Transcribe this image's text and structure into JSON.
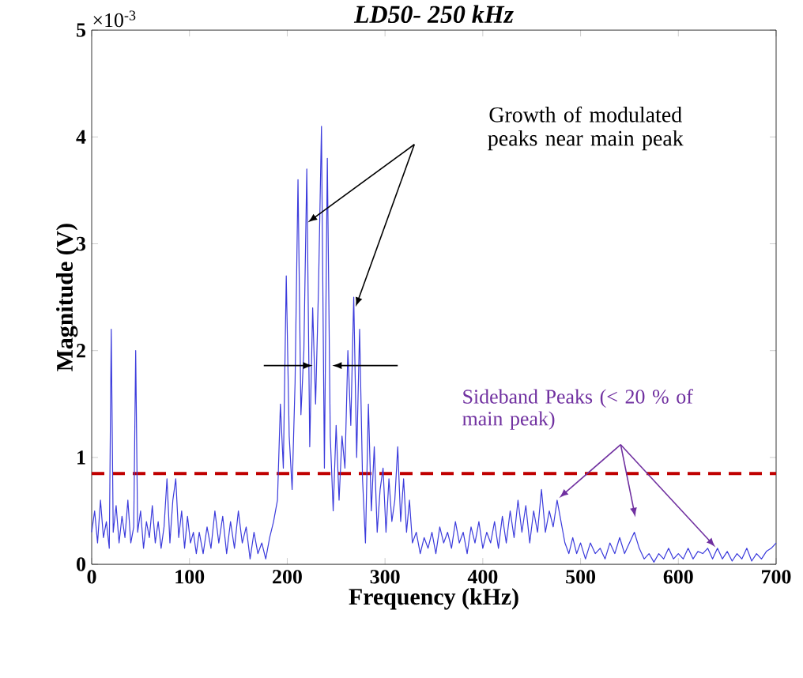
{
  "chart_data": {
    "type": "line",
    "title": "LD50- 250 kHz",
    "xlabel": "Frequency (kHz)",
    "ylabel": "Magnitude (V)",
    "annotations": [
      "×10$^{-3}$",
      "Growth of modulated peaks near main peak",
      "Sideband Peaks (< 20 % of main peak)"
    ],
    "xlim": [
      0,
      700
    ],
    "ylim": [
      0,
      5
    ],
    "xticks": [
      0,
      100,
      200,
      300,
      400,
      500,
      600,
      700
    ],
    "yticks": [
      0,
      1,
      2,
      3,
      4,
      5
    ],
    "grid": false,
    "ref_lines": [
      {
        "axis": "y",
        "value": 0.85,
        "color": "#c00000",
        "line_style": "dashed"
      }
    ],
    "series": [
      {
        "color": "#3b3bdc",
        "x": [
          0,
          3,
          6,
          9,
          12,
          15,
          18,
          20,
          22,
          25,
          28,
          31,
          34,
          37,
          40,
          43,
          45,
          47,
          50,
          53,
          56,
          59,
          62,
          65,
          68,
          71,
          74,
          77,
          80,
          83,
          86,
          89,
          92,
          95,
          98,
          101,
          104,
          107,
          110,
          114,
          118,
          122,
          126,
          130,
          134,
          138,
          142,
          146,
          150,
          154,
          158,
          162,
          166,
          170,
          174,
          178,
          182,
          186,
          190,
          193,
          196,
          199,
          202,
          205,
          208,
          211,
          214,
          217,
          220,
          223,
          226,
          229,
          232,
          235,
          238,
          241,
          244,
          247,
          250,
          253,
          256,
          259,
          262,
          265,
          268,
          271,
          274,
          277,
          280,
          283,
          286,
          289,
          292,
          295,
          298,
          301,
          304,
          307,
          310,
          313,
          316,
          319,
          322,
          325,
          328,
          332,
          336,
          340,
          344,
          348,
          352,
          356,
          360,
          364,
          368,
          372,
          376,
          380,
          384,
          388,
          392,
          396,
          400,
          404,
          408,
          412,
          416,
          420,
          424,
          428,
          432,
          436,
          440,
          444,
          448,
          452,
          456,
          460,
          464,
          468,
          472,
          476,
          480,
          484,
          488,
          492,
          496,
          500,
          505,
          510,
          515,
          520,
          525,
          530,
          535,
          540,
          545,
          550,
          555,
          560,
          565,
          570,
          575,
          580,
          585,
          590,
          595,
          600,
          605,
          610,
          615,
          620,
          625,
          630,
          635,
          640,
          645,
          650,
          655,
          660,
          665,
          670,
          675,
          680,
          685,
          690,
          695,
          700
        ],
        "values": [
          0.3,
          0.5,
          0.2,
          0.6,
          0.25,
          0.4,
          0.15,
          2.2,
          0.3,
          0.55,
          0.2,
          0.45,
          0.25,
          0.6,
          0.2,
          0.35,
          2.0,
          0.3,
          0.5,
          0.15,
          0.4,
          0.25,
          0.55,
          0.2,
          0.4,
          0.15,
          0.35,
          0.8,
          0.2,
          0.6,
          0.8,
          0.25,
          0.5,
          0.15,
          0.45,
          0.2,
          0.3,
          0.1,
          0.3,
          0.1,
          0.35,
          0.15,
          0.5,
          0.2,
          0.45,
          0.1,
          0.4,
          0.15,
          0.5,
          0.2,
          0.35,
          0.05,
          0.3,
          0.1,
          0.2,
          0.05,
          0.25,
          0.4,
          0.6,
          1.5,
          0.9,
          2.7,
          1.2,
          0.7,
          1.7,
          3.6,
          1.4,
          2.0,
          3.7,
          1.1,
          2.4,
          1.5,
          2.6,
          4.1,
          0.9,
          3.8,
          1.2,
          0.5,
          1.3,
          0.6,
          1.2,
          0.9,
          2.0,
          1.3,
          2.5,
          1.0,
          2.2,
          0.8,
          0.2,
          1.5,
          0.5,
          1.1,
          0.3,
          0.7,
          0.9,
          0.3,
          0.8,
          0.4,
          0.6,
          1.1,
          0.4,
          0.8,
          0.3,
          0.6,
          0.2,
          0.3,
          0.1,
          0.25,
          0.15,
          0.3,
          0.1,
          0.35,
          0.2,
          0.3,
          0.15,
          0.4,
          0.2,
          0.3,
          0.1,
          0.35,
          0.2,
          0.4,
          0.15,
          0.3,
          0.2,
          0.4,
          0.15,
          0.45,
          0.2,
          0.5,
          0.25,
          0.6,
          0.3,
          0.55,
          0.2,
          0.5,
          0.3,
          0.7,
          0.3,
          0.5,
          0.35,
          0.6,
          0.4,
          0.2,
          0.1,
          0.25,
          0.1,
          0.2,
          0.05,
          0.2,
          0.1,
          0.15,
          0.05,
          0.2,
          0.1,
          0.25,
          0.1,
          0.2,
          0.3,
          0.15,
          0.05,
          0.1,
          0.02,
          0.1,
          0.05,
          0.15,
          0.05,
          0.1,
          0.05,
          0.15,
          0.05,
          0.12,
          0.1,
          0.15,
          0.05,
          0.15,
          0.05,
          0.12,
          0.03,
          0.1,
          0.05,
          0.15,
          0.03,
          0.1,
          0.05,
          0.12,
          0.15,
          0.2
        ]
      }
    ]
  }
}
